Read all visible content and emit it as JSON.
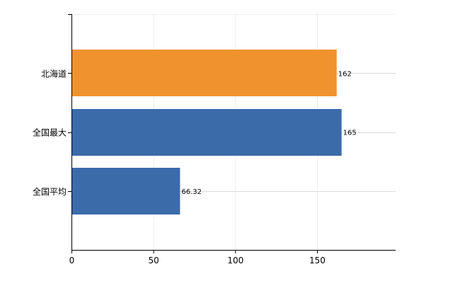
{
  "chart_data": {
    "type": "bar",
    "orientation": "horizontal",
    "categories": [
      "北海道",
      "全国最大",
      "全国平均"
    ],
    "values": [
      162,
      165,
      66.32
    ],
    "value_labels": [
      "162",
      "165",
      "66.32"
    ],
    "bar_colors": [
      "#F0932E",
      "#3C6BAA",
      "#3C6BAA"
    ],
    "xlim": [
      0,
      198
    ],
    "x_ticks": [
      0,
      50,
      100,
      150
    ],
    "x_tick_labels": [
      "0",
      "50",
      "100",
      "150"
    ],
    "grid": true,
    "gridline_color": "#d9d9d9",
    "axis_color": "#000000",
    "title": "",
    "xlabel": "",
    "ylabel": ""
  }
}
